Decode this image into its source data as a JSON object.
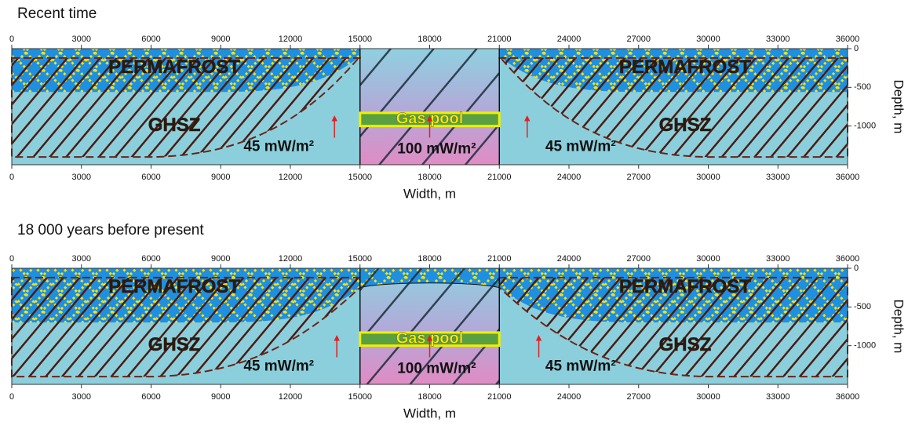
{
  "panels": [
    {
      "title": "Recent time",
      "x_ticks": [
        0,
        3000,
        6000,
        9000,
        12000,
        15000,
        18000,
        21000,
        24000,
        27000,
        30000,
        33000,
        36000
      ],
      "y_ticks": [
        0,
        -500,
        -1000
      ],
      "x_axis_label": "Width, m",
      "y_axis_label": "Depth, m",
      "zones": [
        "PERMAFROST",
        "PERMAFROST",
        "GHSZ",
        "GHSZ"
      ],
      "gas_pool": "Gas pool",
      "heat_flows": [
        "45 mW/m²",
        "100 mW/m²",
        "45 mW/m²"
      ]
    },
    {
      "title": "18 000 years before present",
      "x_ticks": [
        0,
        3000,
        6000,
        9000,
        12000,
        15000,
        18000,
        21000,
        24000,
        27000,
        30000,
        33000,
        36000
      ],
      "y_ticks": [
        0,
        -500,
        -1000
      ],
      "x_axis_label": "Width, m",
      "y_axis_label": "Depth, m",
      "zones": [
        "PERMAFROST",
        "PERMAFROST",
        "GHSZ",
        "GHSZ"
      ],
      "gas_pool": "Gas pool",
      "heat_flows": [
        "45 mW/m²",
        "100 mW/m²",
        "45 mW/m²"
      ]
    }
  ]
}
